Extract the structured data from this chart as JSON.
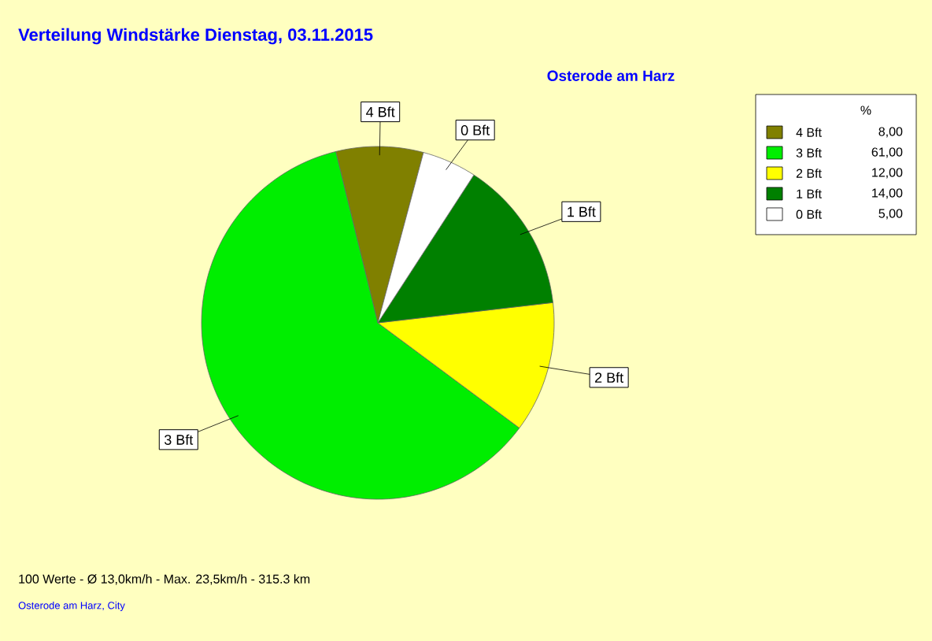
{
  "chart_data": {
    "type": "pie",
    "title": "Verteilung Windstärke  Dienstag, 03.11.2015",
    "subtitle": "Osterode am Harz",
    "categories": [
      "4 Bft",
      "3 Bft",
      "2 Bft",
      "1 Bft",
      "0 Bft"
    ],
    "values": [
      8,
      61,
      12,
      14,
      5
    ],
    "colors": [
      "#808000",
      "#00ee00",
      "#ffff00",
      "#008000",
      "#ffffff"
    ],
    "value_labels": [
      "8,00",
      "61,00",
      "12,00",
      "14,00",
      "5,00"
    ],
    "legend": "top right",
    "legend_title": "%",
    "annotations": [
      "100 Werte   -   Ø 13,0km/h  -  Max. 23,5km/h   -   315.3 km",
      "Osterode am Harz, City"
    ]
  }
}
